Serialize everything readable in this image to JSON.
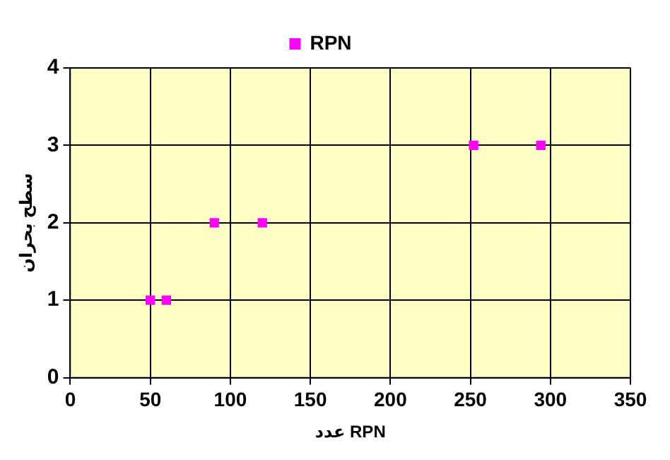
{
  "chart_data": {
    "type": "scatter",
    "xlabel": "عدد RPN",
    "ylabel": "سطح بحران",
    "series": [
      {
        "name": "RPN",
        "color": "#ff00ff",
        "x": [
          50,
          60,
          90,
          120,
          252,
          294
        ],
        "values": [
          1,
          1,
          2,
          2,
          3,
          3
        ]
      }
    ],
    "xlim": [
      0,
      350
    ],
    "xticks": [
      0,
      50,
      100,
      150,
      200,
      250,
      300,
      350
    ],
    "ylim": [
      0,
      4
    ],
    "yticks": [
      0,
      1,
      2,
      3,
      4
    ],
    "grid": true,
    "legend": "top",
    "marker": "square"
  }
}
